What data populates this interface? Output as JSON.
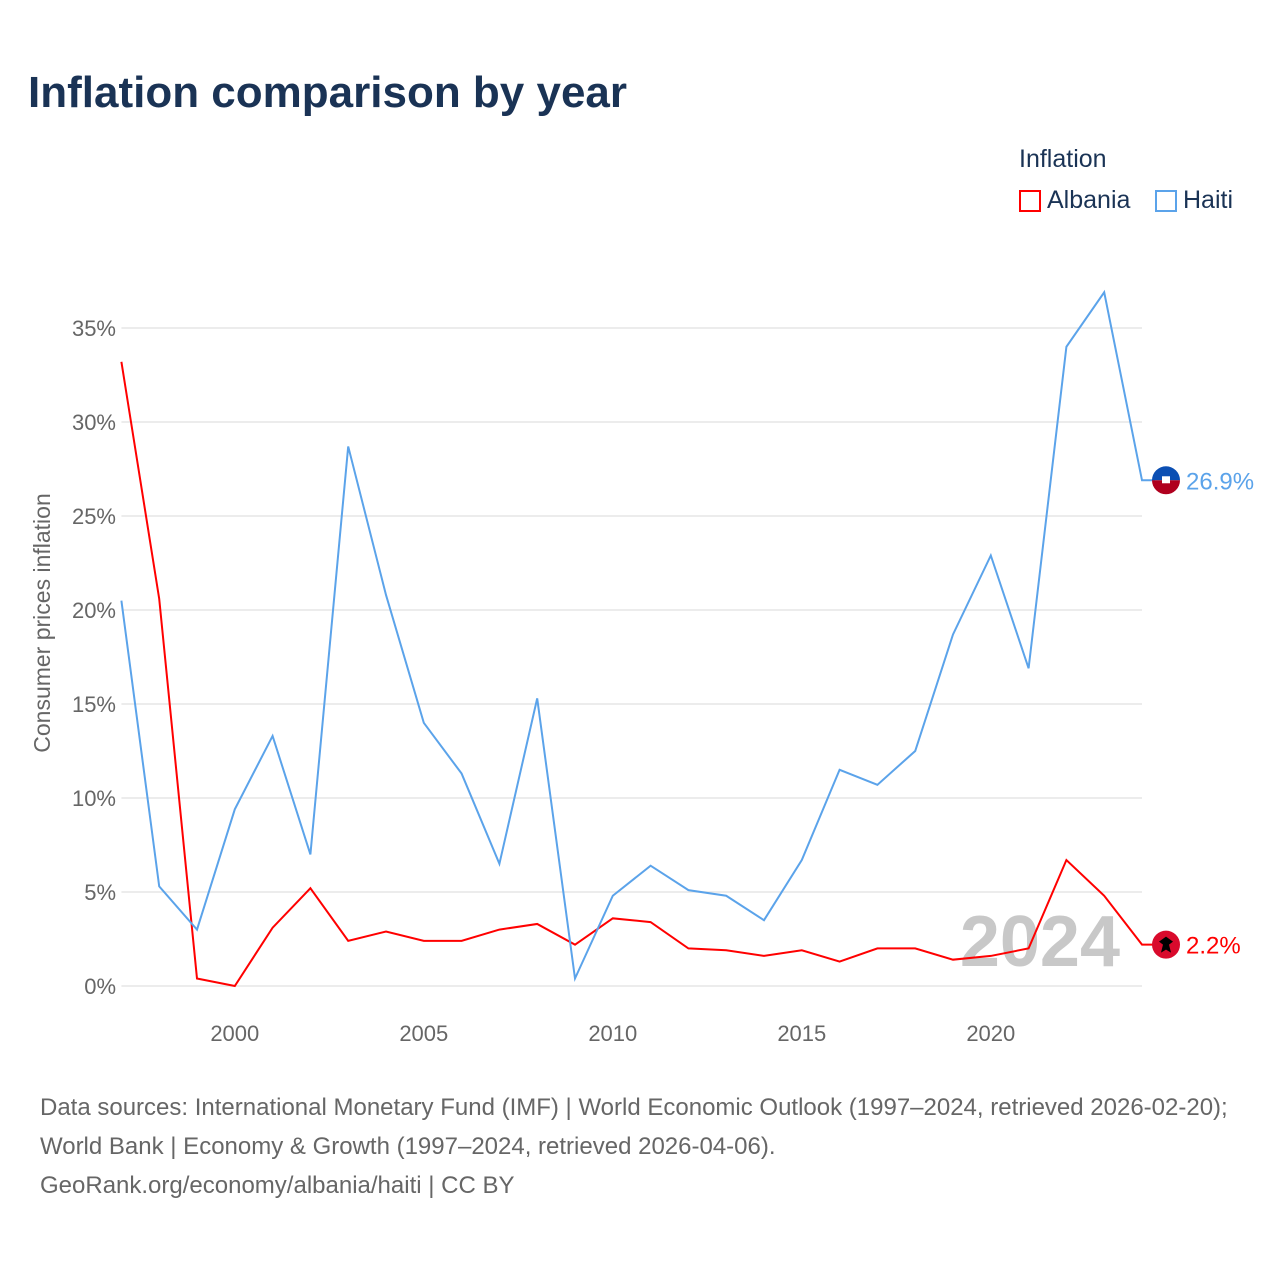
{
  "title": "Inflation comparison by year",
  "legend": {
    "title": "Inflation",
    "items": [
      {
        "label": "Albania",
        "color": "#ff0000"
      },
      {
        "label": "Haiti",
        "color": "#5ba3ea"
      }
    ]
  },
  "watermark_year": "2024",
  "footer": {
    "line1": "Data sources: International Monetary Fund (IMF) | World Economic Outlook (1997–2024, retrieved 2026-02-20); World Bank | Economy & Growth (1997–2024, retrieved 2026-04-06).",
    "line2": "GeoRank.org/economy/albania/haiti | CC BY"
  },
  "chart_data": {
    "type": "line",
    "title": "Inflation comparison by year",
    "xlabel": "",
    "ylabel": "Consumer prices inflation",
    "x": [
      1997,
      1998,
      1999,
      2000,
      2001,
      2002,
      2003,
      2004,
      2005,
      2006,
      2007,
      2008,
      2009,
      2010,
      2011,
      2012,
      2013,
      2014,
      2015,
      2016,
      2017,
      2018,
      2019,
      2020,
      2021,
      2022,
      2023,
      2024
    ],
    "xlim": [
      1997,
      2024
    ],
    "ylim": [
      0,
      35
    ],
    "xticks": [
      2000,
      2005,
      2010,
      2015,
      2020
    ],
    "yticks": [
      0,
      5,
      10,
      15,
      20,
      25,
      30,
      35
    ],
    "ytick_labels": [
      "0%",
      "5%",
      "10%",
      "15%",
      "20%",
      "25%",
      "30%",
      "35%"
    ],
    "grid": true,
    "legend_position": "top-right",
    "series": [
      {
        "name": "Albania",
        "color": "#ff0000",
        "end_label": "2.2%",
        "values": [
          33.2,
          20.6,
          0.4,
          0.0,
          3.1,
          5.2,
          2.4,
          2.9,
          2.4,
          2.4,
          3.0,
          3.3,
          2.2,
          3.6,
          3.4,
          2.0,
          1.9,
          1.6,
          1.9,
          1.3,
          2.0,
          2.0,
          1.4,
          1.6,
          2.0,
          6.7,
          4.8,
          2.2
        ]
      },
      {
        "name": "Haiti",
        "color": "#5ba3ea",
        "end_label": "26.9%",
        "values": [
          20.5,
          5.3,
          3.0,
          9.4,
          13.3,
          7.0,
          28.7,
          20.8,
          14.0,
          11.3,
          6.5,
          15.3,
          0.4,
          4.8,
          6.4,
          5.1,
          4.8,
          3.5,
          6.7,
          11.5,
          10.7,
          12.5,
          18.7,
          22.9,
          16.9,
          34.0,
          36.9,
          26.9
        ]
      }
    ]
  }
}
